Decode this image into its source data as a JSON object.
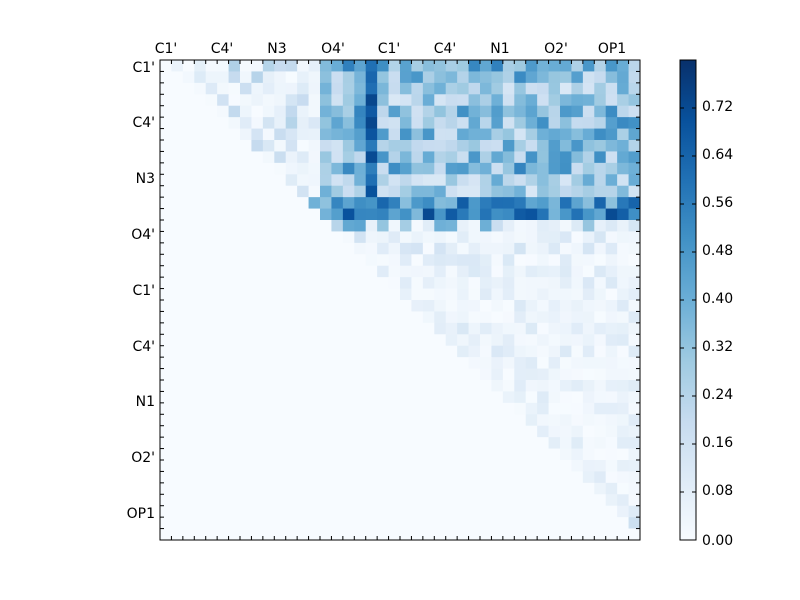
{
  "chart_data": {
    "type": "heatmap",
    "title": "",
    "x_tick_labels": [
      "C1'",
      "C4'",
      "N3",
      "O4'",
      "C1'",
      "C4'",
      "N1",
      "O2'",
      "OP1"
    ],
    "y_tick_labels": [
      "C1'",
      "C4'",
      "N3",
      "O4'",
      "C1'",
      "C4'",
      "N1",
      "O2'",
      "OP1"
    ],
    "x_ticks_position": "top",
    "colormap": "Blues",
    "color_min": "#f7fbff",
    "color_max": "#08306b",
    "vmin": 0.0,
    "vmax": 0.8,
    "grid": false,
    "colorbar": {
      "position": "right",
      "tick_labels": [
        "0.72",
        "0.64",
        "0.56",
        "0.48",
        "0.40",
        "0.32",
        "0.24",
        "0.16",
        "0.08",
        "0.00"
      ],
      "tick_values": [
        0.72,
        0.64,
        0.56,
        0.48,
        0.4,
        0.32,
        0.24,
        0.16,
        0.08,
        0.0
      ]
    },
    "matrix_size": 42,
    "upper_triangular": true,
    "row_max_values": [
      0.75,
      0.7,
      0.55,
      0.55,
      0.72,
      0.7,
      0.7,
      0.65,
      0.72,
      0.75,
      0.55,
      0.55,
      0.7,
      0.77,
      0.45,
      0.15,
      0.15,
      0.12,
      0.12,
      0.12,
      0.1,
      0.12,
      0.1,
      0.12,
      0.12,
      0.12,
      0.1,
      0.1,
      0.1,
      0.1,
      0.1,
      0.1,
      0.1,
      0.1,
      0.1,
      0.1,
      0.1,
      0.1,
      0.1,
      0.18,
      0.2,
      0.0
    ]
  }
}
